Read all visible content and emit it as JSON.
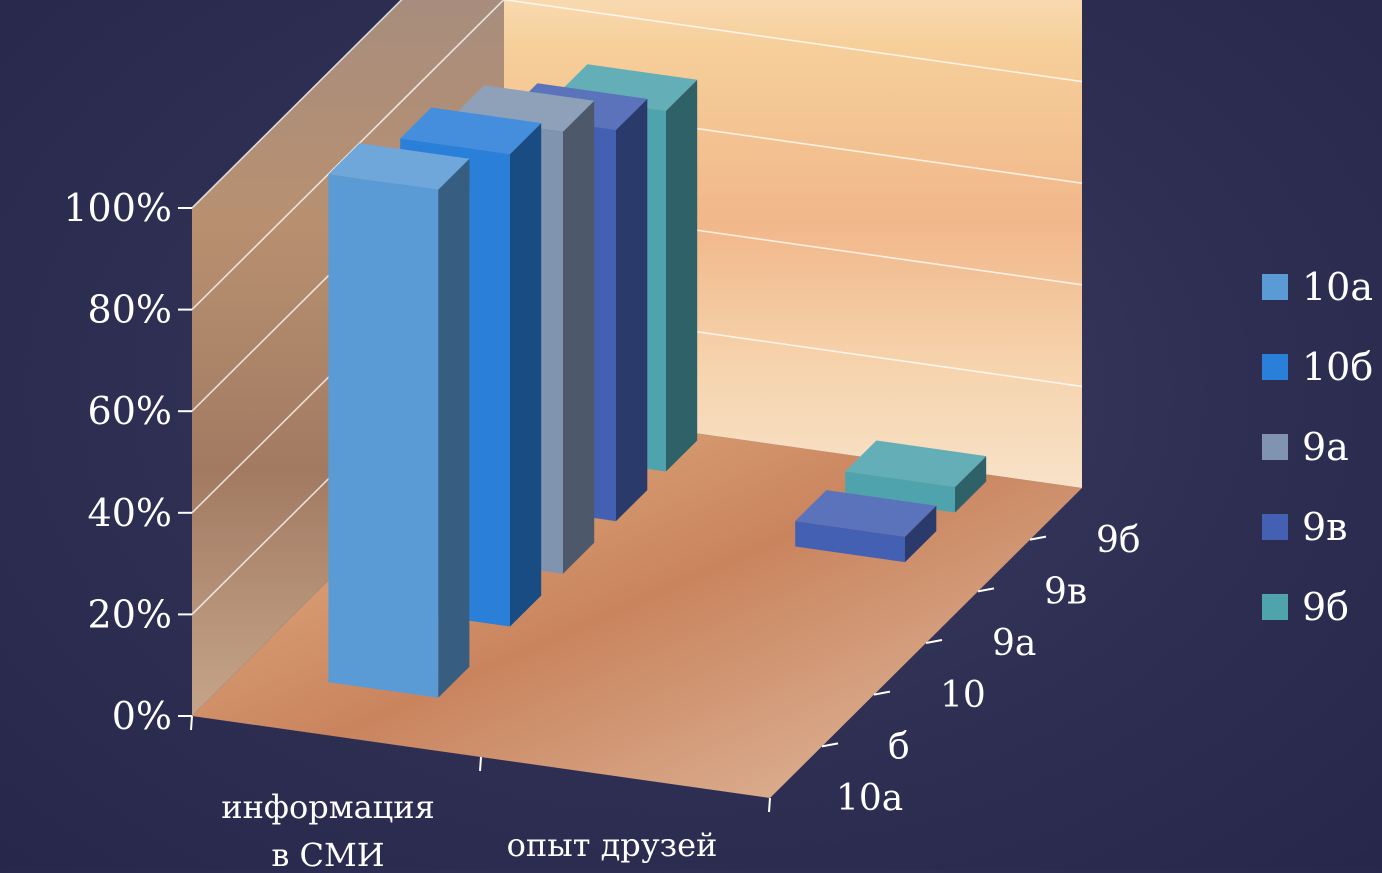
{
  "chart_data": {
    "type": "bar",
    "title": "",
    "xlabel": "",
    "ylabel": "",
    "ylim": [
      0,
      100
    ],
    "y_ticks": [
      "0%",
      "20%",
      "40%",
      "60%",
      "80%",
      "100%"
    ],
    "categories": [
      "информация в СМИ",
      "опыт  друзей"
    ],
    "category_lines": [
      [
        "информация",
        "в СМИ"
      ],
      [
        "опыт  друзей"
      ]
    ],
    "depth_labels": [
      "10а",
      "б",
      "10",
      "9а",
      "9в",
      "9б"
    ],
    "series": [
      {
        "name": "10а",
        "color": "#5b9bd5",
        "values": [
          100,
          0
        ]
      },
      {
        "name": "10б",
        "color": "#2a7fd8",
        "values": [
          93,
          0
        ]
      },
      {
        "name": "9а",
        "color": "#8094b0",
        "values": [
          87,
          0
        ]
      },
      {
        "name": "9в",
        "color": "#4460b2",
        "values": [
          77,
          5
        ]
      },
      {
        "name": "9б",
        "color": "#4fa3ad",
        "values": [
          71,
          5
        ]
      }
    ],
    "legend_position": "right",
    "grid": true,
    "projection": "3d"
  }
}
